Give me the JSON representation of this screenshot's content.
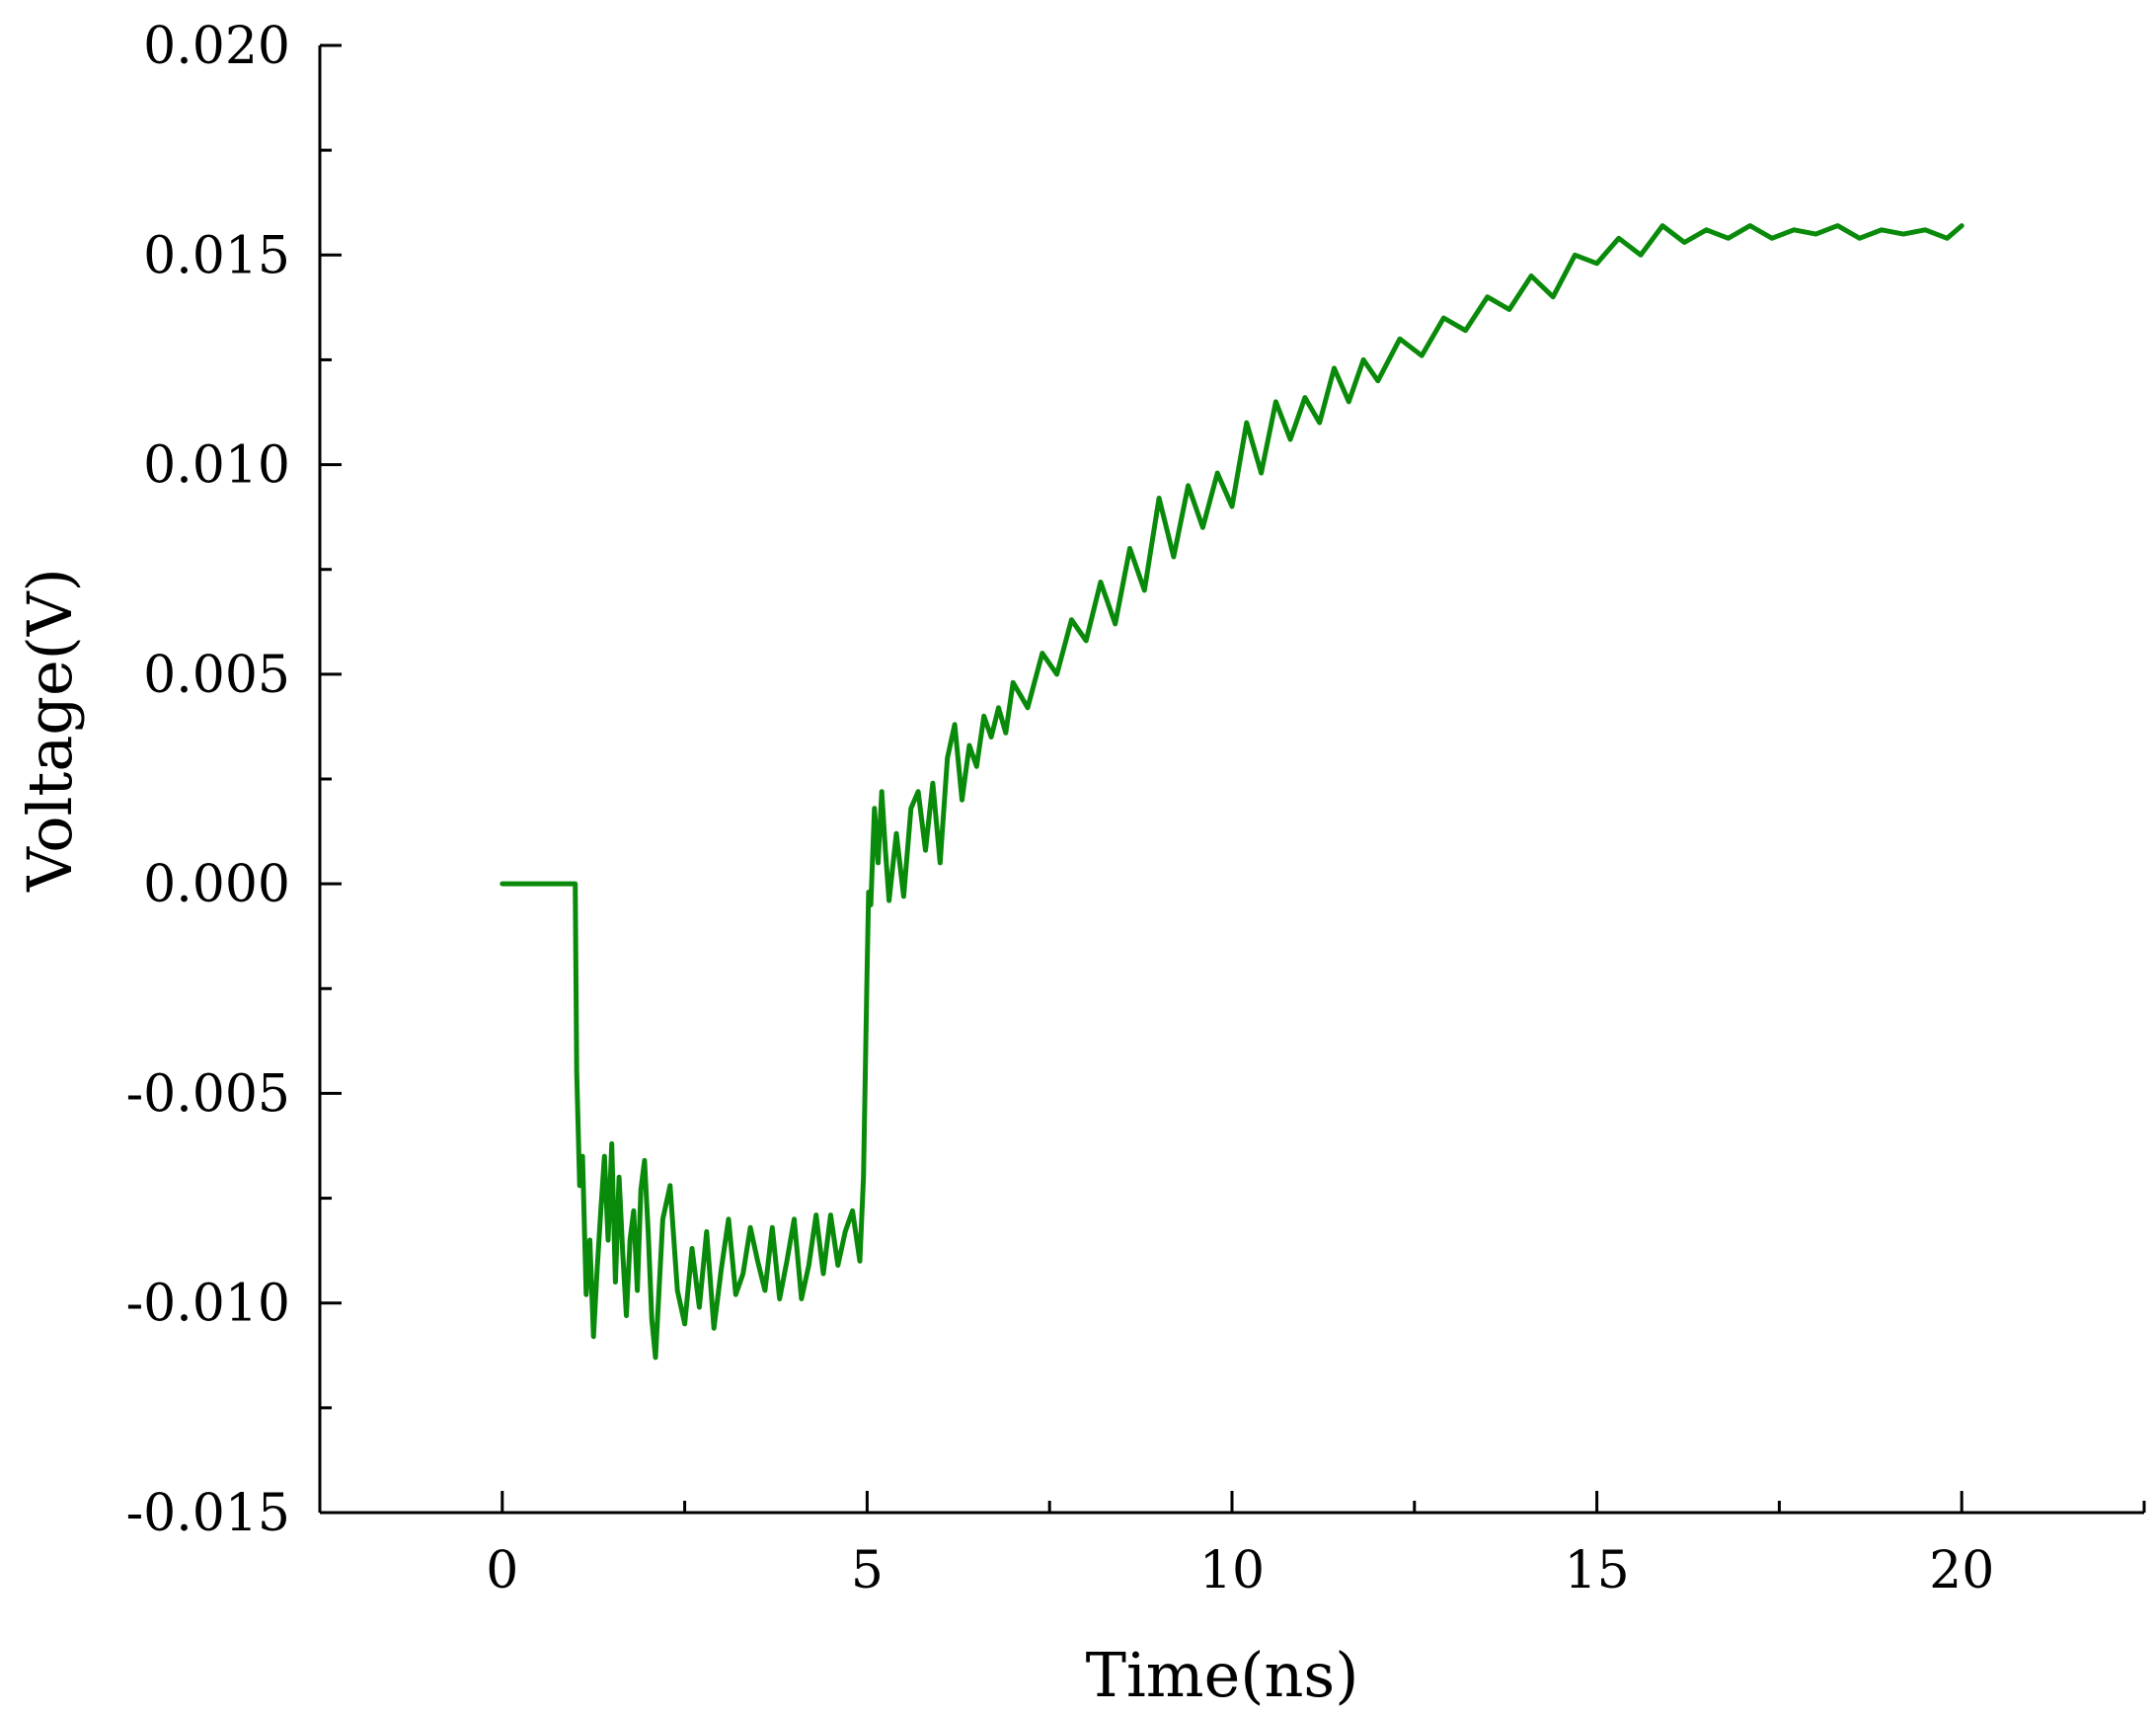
{
  "chart_data": {
    "type": "line",
    "title": "",
    "xlabel": "Time(ns)",
    "ylabel": "Voltage(V)",
    "xlim": [
      -2.5,
      22.5
    ],
    "ylim": [
      -0.015,
      0.02
    ],
    "x_ticks": [
      {
        "value": 0,
        "label": "0"
      },
      {
        "value": 5,
        "label": "5"
      },
      {
        "value": 10,
        "label": "10"
      },
      {
        "value": 15,
        "label": "15"
      },
      {
        "value": 20,
        "label": "20"
      }
    ],
    "y_ticks": [
      {
        "value": -0.015,
        "label": "-0.015"
      },
      {
        "value": -0.01,
        "label": "-0.010"
      },
      {
        "value": -0.005,
        "label": "-0.005"
      },
      {
        "value": 0.0,
        "label": "0.000"
      },
      {
        "value": 0.005,
        "label": "0.005"
      },
      {
        "value": 0.01,
        "label": "0.010"
      },
      {
        "value": 0.015,
        "label": "0.015"
      },
      {
        "value": 0.02,
        "label": "0.020"
      }
    ],
    "grid": false,
    "legend": "none",
    "series": [
      {
        "color": "#0a8a0a",
        "x": [
          0,
          0.5,
          1.0,
          1.02,
          1.06,
          1.1,
          1.15,
          1.2,
          1.25,
          1.3,
          1.35,
          1.4,
          1.45,
          1.5,
          1.55,
          1.6,
          1.65,
          1.7,
          1.75,
          1.8,
          1.85,
          1.9,
          1.95,
          2.0,
          2.05,
          2.1,
          2.2,
          2.3,
          2.4,
          2.5,
          2.6,
          2.7,
          2.8,
          2.9,
          3.0,
          3.1,
          3.2,
          3.3,
          3.4,
          3.5,
          3.6,
          3.7,
          3.8,
          3.9,
          4.0,
          4.1,
          4.2,
          4.3,
          4.4,
          4.5,
          4.6,
          4.7,
          4.8,
          4.9,
          4.95,
          5.0,
          5.02,
          5.05,
          5.1,
          5.15,
          5.2,
          5.25,
          5.3,
          5.4,
          5.5,
          5.6,
          5.7,
          5.8,
          5.9,
          6.0,
          6.1,
          6.2,
          6.3,
          6.4,
          6.5,
          6.6,
          6.7,
          6.8,
          6.9,
          7.0,
          7.2,
          7.4,
          7.6,
          7.8,
          8.0,
          8.2,
          8.4,
          8.6,
          8.8,
          9.0,
          9.2,
          9.4,
          9.6,
          9.8,
          10.0,
          10.2,
          10.4,
          10.6,
          10.8,
          11.0,
          11.2,
          11.4,
          11.6,
          11.8,
          12.0,
          12.3,
          12.6,
          12.9,
          13.2,
          13.5,
          13.8,
          14.1,
          14.4,
          14.7,
          15.0,
          15.3,
          15.6,
          15.9,
          16.2,
          16.5,
          16.8,
          17.1,
          17.4,
          17.7,
          18.0,
          18.3,
          18.6,
          18.9,
          19.2,
          19.5,
          19.8,
          20.0
        ],
        "y": [
          0.0,
          0.0,
          0.0,
          -0.0045,
          -0.0072,
          -0.0065,
          -0.0098,
          -0.0085,
          -0.0108,
          -0.0092,
          -0.0078,
          -0.0065,
          -0.0085,
          -0.0062,
          -0.0095,
          -0.007,
          -0.0088,
          -0.0103,
          -0.0085,
          -0.0078,
          -0.0097,
          -0.0073,
          -0.0066,
          -0.0083,
          -0.0104,
          -0.0113,
          -0.008,
          -0.0072,
          -0.0097,
          -0.0105,
          -0.0087,
          -0.0101,
          -0.0083,
          -0.0106,
          -0.0092,
          -0.008,
          -0.0098,
          -0.0093,
          -0.0082,
          -0.009,
          -0.0097,
          -0.0082,
          -0.0099,
          -0.009,
          -0.008,
          -0.0099,
          -0.0091,
          -0.0079,
          -0.0093,
          -0.0079,
          -0.0091,
          -0.0083,
          -0.0078,
          -0.009,
          -0.007,
          -0.002,
          -0.0002,
          -0.0005,
          0.0018,
          0.0005,
          0.0022,
          0.0008,
          -0.0004,
          0.0012,
          -0.0003,
          0.0018,
          0.0022,
          0.0008,
          0.0024,
          0.0005,
          0.003,
          0.0038,
          0.002,
          0.0033,
          0.0028,
          0.004,
          0.0035,
          0.0042,
          0.0036,
          0.0048,
          0.0042,
          0.0055,
          0.005,
          0.0063,
          0.0058,
          0.0072,
          0.0062,
          0.008,
          0.007,
          0.0092,
          0.0078,
          0.0095,
          0.0085,
          0.0098,
          0.009,
          0.011,
          0.0098,
          0.0115,
          0.0106,
          0.0116,
          0.011,
          0.0123,
          0.0115,
          0.0125,
          0.012,
          0.013,
          0.0126,
          0.0135,
          0.0132,
          0.014,
          0.0137,
          0.0145,
          0.014,
          0.015,
          0.0148,
          0.0154,
          0.015,
          0.0157,
          0.0153,
          0.0156,
          0.0154,
          0.0157,
          0.0154,
          0.0156,
          0.0155,
          0.0157,
          0.0154,
          0.0156,
          0.0155,
          0.0156,
          0.0154,
          0.0157
        ]
      }
    ]
  }
}
